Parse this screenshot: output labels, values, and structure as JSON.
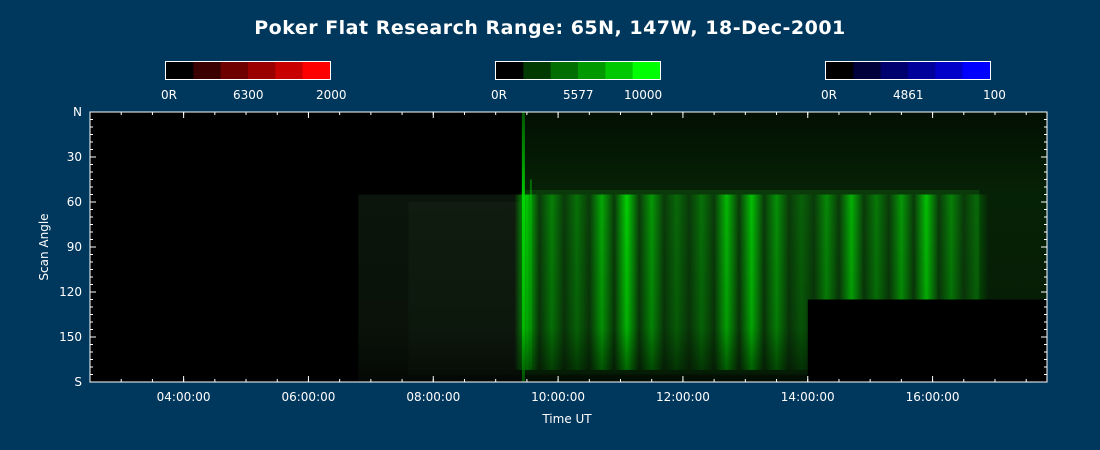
{
  "colors": {
    "background": "#00375c",
    "red_scale": [
      "#000000",
      "#3a0000",
      "#6e0000",
      "#9a0000",
      "#c80000",
      "#ff0000"
    ],
    "green_scale": [
      "#000000",
      "#003a00",
      "#006e00",
      "#009a00",
      "#00c800",
      "#00ff00"
    ],
    "blue_scale": [
      "#000000",
      "#00003a",
      "#00006e",
      "#00009a",
      "#0000c8",
      "#0000ff"
    ]
  },
  "chart_data": {
    "type": "heatmap",
    "title": "Poker Flat Research Range: 65N, 147W, 18-Dec-2001",
    "xlabel": "Time UT",
    "ylabel": "Scan Angle",
    "x_range": [
      "02:30",
      "17:50"
    ],
    "x_ticks": [
      "04:00:00",
      "06:00:00",
      "08:00:00",
      "10:00:00",
      "12:00:00",
      "14:00:00",
      "16:00:00"
    ],
    "y_ticks": [
      "N",
      "30",
      "60",
      "90",
      "120",
      "150",
      "S"
    ],
    "y_range": [
      0,
      180
    ],
    "channels": [
      {
        "name": "6300",
        "color": "red",
        "min_label": "0R",
        "max_label": "2000"
      },
      {
        "name": "5577",
        "color": "green",
        "min_label": "0R",
        "max_label": "10000"
      },
      {
        "name": "4861",
        "color": "blue",
        "min_label": "0R",
        "max_label": "100"
      }
    ],
    "green_intensity_profile": {
      "times_utc_hours": [
        9.5,
        9.9,
        10.3,
        10.7,
        11.1,
        11.5,
        11.9,
        12.3,
        12.7,
        13.1,
        13.5,
        13.9,
        14.3,
        14.7,
        15.1,
        15.5,
        15.9,
        16.3,
        16.7
      ],
      "relative_intensity": [
        0.9,
        0.45,
        0.35,
        0.7,
        0.95,
        0.6,
        0.3,
        0.35,
        0.8,
        0.85,
        0.55,
        0.25,
        0.5,
        0.75,
        0.4,
        0.6,
        0.85,
        0.45,
        0.3
      ]
    },
    "dark_region": {
      "time_start": "14:00",
      "time_end": "17:50",
      "angle_start": 125,
      "angle_end": 180
    }
  }
}
